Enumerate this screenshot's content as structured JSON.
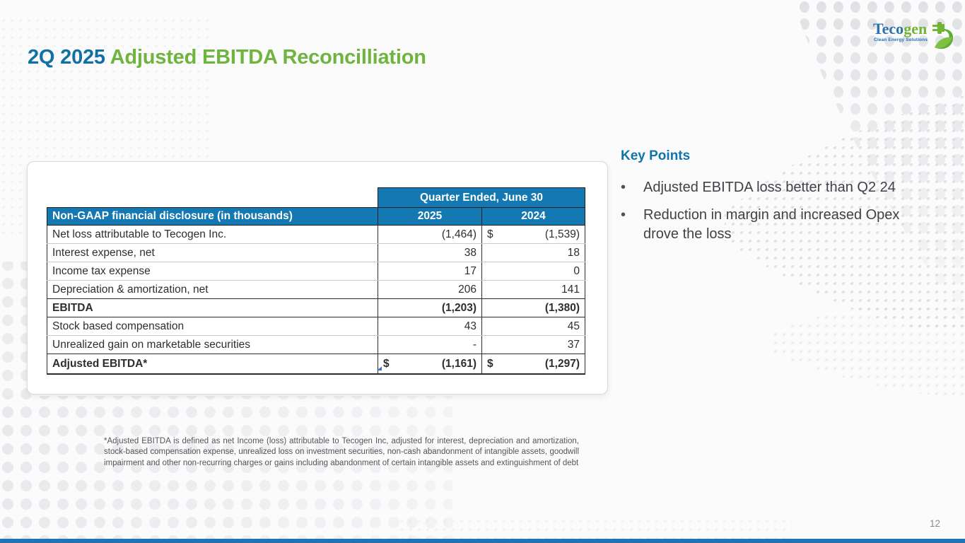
{
  "slide": {
    "title_prefix": "2Q 2025",
    "title_rest": "Adjusted EBITDA Reconcilliation",
    "page_number": "12"
  },
  "logo": {
    "name_primary": "Teco",
    "name_secondary": "gen",
    "tagline": "Clean Energy Solutions"
  },
  "table": {
    "span_header": "Quarter Ended, June 30",
    "header": {
      "label": "Non-GAAP financial disclosure (in thousands)",
      "col1": "2025",
      "col2": "2024"
    },
    "rows": [
      {
        "label": "Net loss attributable to Tecogen Inc.",
        "d1": "",
        "v1": "(1,464)",
        "d2": "$",
        "v2": "(1,539)",
        "bold": false,
        "section_end": false
      },
      {
        "label": "Interest expense, net",
        "d1": "",
        "v1": "38",
        "d2": "",
        "v2": "18",
        "bold": false,
        "section_end": false
      },
      {
        "label": "Income tax expense",
        "d1": "",
        "v1": "17",
        "d2": "",
        "v2": "0",
        "bold": false,
        "section_end": false
      },
      {
        "label": "Depreciation & amortization, net",
        "d1": "",
        "v1": "206",
        "d2": "",
        "v2": "141",
        "bold": false,
        "section_end": true
      },
      {
        "label": "EBITDA",
        "d1": "",
        "v1": "(1,203)",
        "d2": "",
        "v2": "(1,380)",
        "bold": true,
        "section_end": true
      },
      {
        "label": "Stock based compensation",
        "d1": "",
        "v1": "43",
        "d2": "",
        "v2": "45",
        "bold": false,
        "section_end": false
      },
      {
        "label": "Unrealized gain on marketable securities",
        "d1": "",
        "v1": "-",
        "d2": "",
        "v2": "37",
        "bold": false,
        "section_end": true
      },
      {
        "label": "Adjusted EBITDA*",
        "d1": "$",
        "v1": "(1,161)",
        "d2": "$",
        "v2": "(1,297)",
        "bold": true,
        "section_end": false
      }
    ]
  },
  "key_points": {
    "heading": "Key Points",
    "bullets": [
      "Adjusted EBITDA loss better than Q2 24",
      "Reduction in margin and increased Opex drove the loss"
    ]
  },
  "footnote": "*Adjusted EBITDA is defined as net Income (loss) attributable to Tecogen Inc, adjusted for interest, depreciation and amortization, stock-based compensation expense, unrealized loss on investment securities, non-cash abandonment of intangible assets, goodwill impairment and other non-recurring charges or gains including abandonment of certain intangible assets and extinguishment of debt",
  "colors": {
    "title_blue": "#1270A4",
    "title_green": "#6EB43F",
    "table_header_blue": "#1478B2",
    "key_points_blue": "#0F74A8",
    "accent_bar_blue": "#2173B4",
    "dot_gray": "#E2E4E8"
  }
}
